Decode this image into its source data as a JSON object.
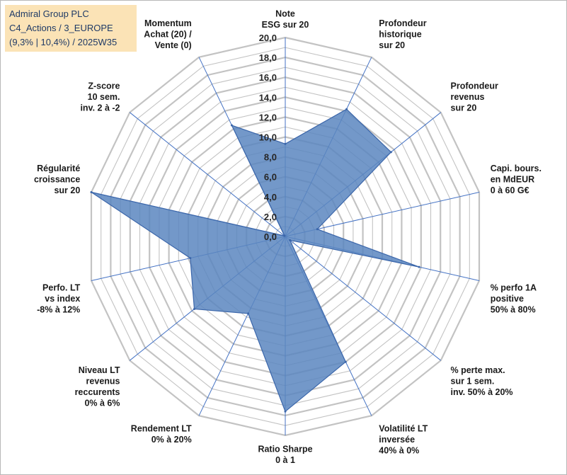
{
  "title_box": {
    "line1": "Admiral Group PLC",
    "line2": "C4_Actions / 3_EUROPE",
    "line3": "(9,3% | 10,4%) / 2025W35"
  },
  "colors": {
    "fill": "#5b86c0",
    "stroke": "#3b66aa",
    "spokes": "#4472c4",
    "grid": "#c3c3c3",
    "title_bg": "#fbe3b6"
  },
  "chart_data": {
    "type": "radar",
    "range": [
      0,
      20
    ],
    "major_step": 2,
    "minor_step": 1,
    "tick_labels": [
      "0,0",
      "2,0",
      "4,0",
      "6,0",
      "8,0",
      "10,0",
      "12,0",
      "14,0",
      "16,0",
      "18,0",
      "20,0"
    ],
    "axes": [
      {
        "label": [
          "Note",
          "ESG sur 20"
        ],
        "value": 9.3
      },
      {
        "label": [
          "Profondeur",
          "historique",
          "sur 20"
        ],
        "value": 14.2
      },
      {
        "label": [
          "Profondeur",
          "revenus",
          "sur 20"
        ],
        "value": 13.6
      },
      {
        "label": [
          "Capi. bours.",
          "en MdEUR",
          "0 à 60 G€"
        ],
        "value": 3.3
      },
      {
        "label": [
          "% perfo 1A",
          "positive",
          "50% à 80%"
        ],
        "value": 13.8
      },
      {
        "label": [
          "% perte max.",
          "sur 1 sem.",
          "inv. 50% à 20%"
        ],
        "value": 0.6
      },
      {
        "label": [
          "Volatilité LT",
          "inversée",
          "40% à 0%"
        ],
        "value": 14.0
      },
      {
        "label": [
          "Ratio Sharpe",
          "0 à 1"
        ],
        "value": 17.6
      },
      {
        "label": [
          "Rendement LT",
          "0% à 20%"
        ],
        "value": 8.6
      },
      {
        "label": [
          "Niveau LT",
          "revenus",
          "reccurents",
          "0% à 6%"
        ],
        "value": 11.7
      },
      {
        "label": [
          "Perfo. LT",
          "vs index",
          "-8% à 12%"
        ],
        "value": 9.8
      },
      {
        "label": [
          "Régularité",
          "croissance",
          "sur 20"
        ],
        "value": 20.0
      },
      {
        "label": [
          "Z-score",
          "10 sem.",
          "inv. 2 à -2"
        ],
        "value": 0.1
      },
      {
        "label": [
          "Momentum",
          "Achat (20) /",
          "Vente (0)"
        ],
        "value": 12.4
      }
    ]
  }
}
